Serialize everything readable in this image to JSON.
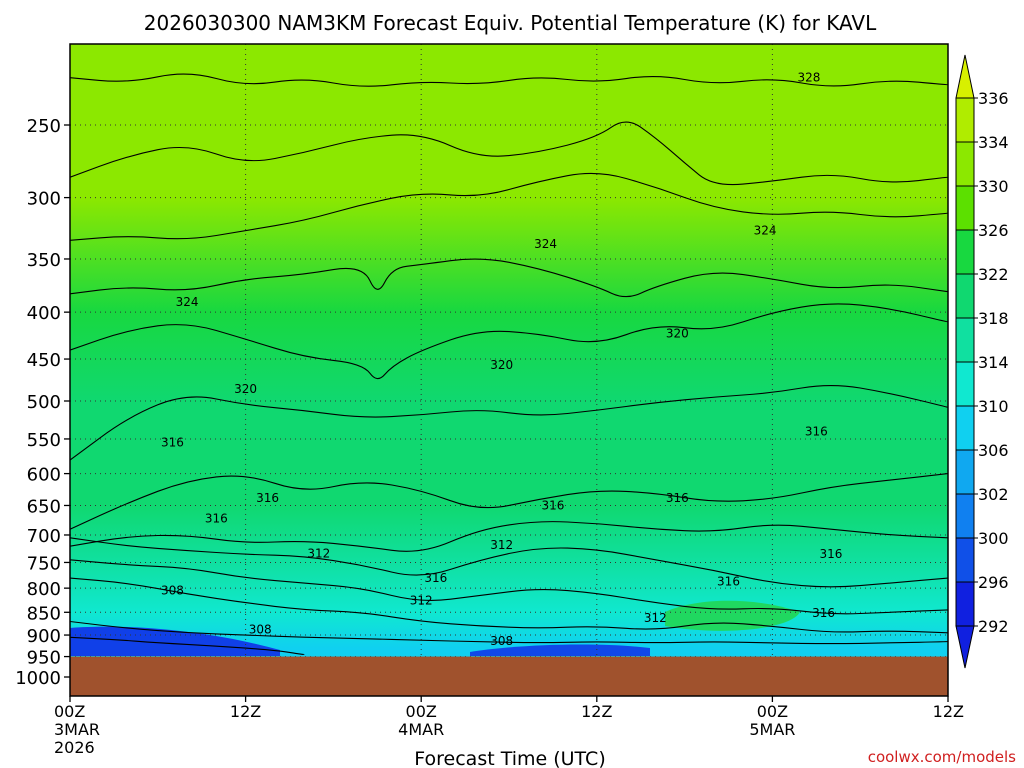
{
  "chart_data": {
    "type": "heatmap",
    "title": "2026030300 NAM3KM Forecast Equiv. Potential Temperature (K) for KAVL",
    "xlabel": "Forecast Time (UTC)",
    "ylabel": "",
    "x_ticks": [
      {
        "hour": 0,
        "label": "00Z",
        "sub": [
          "3MAR",
          "2026"
        ]
      },
      {
        "hour": 12,
        "label": "12Z",
        "sub": []
      },
      {
        "hour": 24,
        "label": "00Z",
        "sub": [
          "4MAR"
        ]
      },
      {
        "hour": 36,
        "label": "12Z",
        "sub": []
      },
      {
        "hour": 48,
        "label": "00Z",
        "sub": [
          "5MAR"
        ]
      },
      {
        "hour": 60,
        "label": "12Z",
        "sub": []
      }
    ],
    "xlim": [
      0,
      60
    ],
    "y_ticks": [
      250,
      300,
      350,
      400,
      450,
      500,
      550,
      600,
      650,
      700,
      750,
      800,
      850,
      900,
      950,
      1000
    ],
    "y_scale": "log",
    "ylim": [
      1050,
      200
    ],
    "ground_pressure": 950,
    "colorbar": {
      "labels": [
        "336",
        "334",
        "330",
        "326",
        "322",
        "318",
        "314",
        "310",
        "306",
        "302",
        "300",
        "296",
        "292"
      ],
      "colors": [
        "#d8f000",
        "#b0ec00",
        "#8ce800",
        "#5ce000",
        "#18d840",
        "#10d870",
        "#10e0a0",
        "#10e8d0",
        "#10d0f0",
        "#10a8f0",
        "#1080f0",
        "#1050e8",
        "#1020e0"
      ]
    },
    "field_levels": [
      {
        "pressure": 210,
        "value": 331
      },
      {
        "pressure": 300,
        "value": 328
      },
      {
        "pressure": 400,
        "value": 323
      },
      {
        "pressure": 500,
        "value": 319
      },
      {
        "pressure": 650,
        "value": 316
      },
      {
        "pressure": 750,
        "value": 313
      },
      {
        "pressure": 850,
        "value": 309
      },
      {
        "pressure": 930,
        "value": 305
      }
    ],
    "contours": [
      {
        "value": 328,
        "pts": [
          [
            0,
            222
          ],
          [
            4,
            225
          ],
          [
            8,
            218
          ],
          [
            12,
            227
          ],
          [
            16,
            222
          ],
          [
            20,
            228
          ],
          [
            24,
            224
          ],
          [
            28,
            226
          ],
          [
            32,
            221
          ],
          [
            36,
            225
          ],
          [
            40,
            220
          ],
          [
            44,
            226
          ],
          [
            48,
            222
          ],
          [
            52,
            228
          ],
          [
            56,
            223
          ],
          [
            60,
            226
          ]
        ]
      },
      {
        "value": 328,
        "pts": [
          [
            0,
            285
          ],
          [
            4,
            270
          ],
          [
            8,
            262
          ],
          [
            12,
            276
          ],
          [
            16,
            268
          ],
          [
            20,
            258
          ],
          [
            24,
            255
          ],
          [
            28,
            272
          ],
          [
            32,
            268
          ],
          [
            36,
            258
          ],
          [
            38,
            245
          ],
          [
            40,
            258
          ],
          [
            42,
            275
          ],
          [
            44,
            292
          ],
          [
            48,
            288
          ],
          [
            52,
            282
          ],
          [
            56,
            290
          ],
          [
            60,
            285
          ]
        ]
      },
      {
        "value": 324,
        "pts": [
          [
            0,
            334
          ],
          [
            4,
            330
          ],
          [
            8,
            334
          ],
          [
            12,
            326
          ],
          [
            16,
            318
          ],
          [
            20,
            305
          ],
          [
            24,
            296
          ],
          [
            28,
            300
          ],
          [
            32,
            288
          ],
          [
            36,
            280
          ],
          [
            40,
            292
          ],
          [
            44,
            308
          ],
          [
            48,
            314
          ],
          [
            52,
            310
          ],
          [
            56,
            316
          ],
          [
            60,
            312
          ]
        ]
      },
      {
        "value": 324,
        "pts": [
          [
            0,
            382
          ],
          [
            4,
            375
          ],
          [
            8,
            380
          ],
          [
            12,
            368
          ],
          [
            16,
            364
          ],
          [
            20,
            355
          ],
          [
            21,
            385
          ],
          [
            22,
            358
          ],
          [
            24,
            355
          ],
          [
            28,
            348
          ],
          [
            32,
            358
          ],
          [
            36,
            375
          ],
          [
            38,
            388
          ],
          [
            40,
            375
          ],
          [
            44,
            360
          ],
          [
            48,
            368
          ],
          [
            52,
            378
          ],
          [
            56,
            372
          ],
          [
            60,
            380
          ]
        ]
      },
      {
        "value": 320,
        "pts": [
          [
            0,
            440
          ],
          [
            4,
            418
          ],
          [
            8,
            410
          ],
          [
            12,
            428
          ],
          [
            16,
            448
          ],
          [
            20,
            455
          ],
          [
            21,
            478
          ],
          [
            22,
            458
          ],
          [
            24,
            440
          ],
          [
            28,
            418
          ],
          [
            32,
            422
          ],
          [
            36,
            435
          ],
          [
            40,
            412
          ],
          [
            44,
            420
          ],
          [
            48,
            400
          ],
          [
            52,
            390
          ],
          [
            56,
            396
          ],
          [
            60,
            410
          ]
        ]
      },
      {
        "value": 320,
        "pts": [
          [
            0,
            580
          ],
          [
            4,
            520
          ],
          [
            8,
            490
          ],
          [
            12,
            505
          ],
          [
            16,
            512
          ],
          [
            20,
            522
          ],
          [
            24,
            518
          ],
          [
            28,
            510
          ],
          [
            32,
            520
          ],
          [
            36,
            512
          ],
          [
            40,
            502
          ],
          [
            44,
            495
          ],
          [
            48,
            490
          ],
          [
            52,
            478
          ],
          [
            56,
            490
          ],
          [
            60,
            508
          ]
        ]
      },
      {
        "value": 316,
        "pts": [
          [
            0,
            690
          ],
          [
            4,
            645
          ],
          [
            8,
            610
          ],
          [
            12,
            600
          ],
          [
            16,
            630
          ],
          [
            20,
            610
          ],
          [
            24,
            625
          ],
          [
            28,
            660
          ],
          [
            32,
            640
          ],
          [
            36,
            625
          ],
          [
            40,
            630
          ],
          [
            44,
            645
          ],
          [
            48,
            640
          ],
          [
            52,
            620
          ],
          [
            56,
            610
          ],
          [
            60,
            600
          ]
        ]
      },
      {
        "value": 316,
        "pts": [
          [
            0,
            720
          ],
          [
            4,
            702
          ],
          [
            8,
            700
          ],
          [
            12,
            715
          ],
          [
            16,
            710
          ],
          [
            20,
            720
          ],
          [
            24,
            735
          ],
          [
            28,
            690
          ],
          [
            32,
            675
          ],
          [
            36,
            680
          ],
          [
            40,
            690
          ],
          [
            44,
            695
          ],
          [
            48,
            680
          ],
          [
            52,
            690
          ],
          [
            56,
            700
          ],
          [
            60,
            705
          ]
        ]
      },
      {
        "value": 312,
        "pts": [
          [
            0,
            705
          ],
          [
            4,
            720
          ],
          [
            8,
            728
          ],
          [
            12,
            735
          ],
          [
            16,
            738
          ],
          [
            20,
            755
          ],
          [
            24,
            782
          ],
          [
            28,
            745
          ],
          [
            32,
            722
          ],
          [
            36,
            725
          ],
          [
            40,
            745
          ],
          [
            44,
            765
          ],
          [
            48,
            790
          ],
          [
            52,
            800
          ],
          [
            56,
            790
          ],
          [
            60,
            780
          ]
        ]
      },
      {
        "value": 312,
        "pts": [
          [
            0,
            745
          ],
          [
            4,
            755
          ],
          [
            8,
            760
          ],
          [
            12,
            780
          ],
          [
            16,
            790
          ],
          [
            20,
            800
          ],
          [
            24,
            830
          ],
          [
            28,
            815
          ],
          [
            32,
            800
          ],
          [
            36,
            810
          ],
          [
            40,
            830
          ],
          [
            44,
            845
          ],
          [
            48,
            840
          ],
          [
            52,
            855
          ],
          [
            56,
            850
          ],
          [
            60,
            845
          ]
        ]
      },
      {
        "value": 308,
        "pts": [
          [
            0,
            780
          ],
          [
            4,
            790
          ],
          [
            8,
            812
          ],
          [
            12,
            830
          ],
          [
            16,
            845
          ],
          [
            20,
            850
          ],
          [
            24,
            870
          ],
          [
            28,
            880
          ],
          [
            32,
            885
          ],
          [
            36,
            880
          ],
          [
            40,
            890
          ],
          [
            44,
            870
          ],
          [
            48,
            880
          ],
          [
            52,
            895
          ],
          [
            56,
            890
          ],
          [
            60,
            895
          ]
        ]
      },
      {
        "value": 308,
        "pts": [
          [
            0,
            870
          ],
          [
            4,
            885
          ],
          [
            8,
            895
          ],
          [
            12,
            900
          ],
          [
            16,
            905
          ],
          [
            20,
            908
          ],
          [
            24,
            912
          ],
          [
            28,
            915
          ],
          [
            32,
            918
          ],
          [
            36,
            915
          ],
          [
            40,
            918
          ],
          [
            44,
            915
          ],
          [
            48,
            918
          ],
          [
            52,
            920
          ],
          [
            56,
            918
          ],
          [
            60,
            915
          ]
        ]
      },
      {
        "value": 304,
        "pts": [
          [
            0,
            905
          ],
          [
            3,
            910
          ],
          [
            6,
            918
          ],
          [
            10,
            925
          ],
          [
            14,
            935
          ],
          [
            16,
            945
          ]
        ]
      }
    ],
    "labels": [
      {
        "text": "328",
        "hour": 50.5,
        "pressure": 222
      },
      {
        "text": "324",
        "hour": 32.5,
        "pressure": 337
      },
      {
        "text": "324",
        "hour": 47.5,
        "pressure": 326
      },
      {
        "text": "324",
        "hour": 8,
        "pressure": 390
      },
      {
        "text": "320",
        "hour": 12,
        "pressure": 485
      },
      {
        "text": "320",
        "hour": 29.5,
        "pressure": 457
      },
      {
        "text": "320",
        "hour": 41.5,
        "pressure": 422
      },
      {
        "text": "316",
        "hour": 7,
        "pressure": 555
      },
      {
        "text": "316",
        "hour": 13.5,
        "pressure": 638
      },
      {
        "text": "316",
        "hour": 10,
        "pressure": 672
      },
      {
        "text": "316",
        "hour": 33,
        "pressure": 650
      },
      {
        "text": "316",
        "hour": 41.5,
        "pressure": 638
      },
      {
        "text": "316",
        "hour": 51,
        "pressure": 540
      },
      {
        "text": "316",
        "hour": 52,
        "pressure": 734
      },
      {
        "text": "316",
        "hour": 25,
        "pressure": 780
      },
      {
        "text": "316",
        "hour": 45,
        "pressure": 787
      },
      {
        "text": "316",
        "hour": 51.5,
        "pressure": 852
      },
      {
        "text": "312",
        "hour": 17,
        "pressure": 733
      },
      {
        "text": "312",
        "hour": 29.5,
        "pressure": 718
      },
      {
        "text": "312",
        "hour": 24,
        "pressure": 825
      },
      {
        "text": "312",
        "hour": 40,
        "pressure": 862
      },
      {
        "text": "308",
        "hour": 7,
        "pressure": 805
      },
      {
        "text": "308",
        "hour": 13,
        "pressure": 887
      },
      {
        "text": "308",
        "hour": 29.5,
        "pressure": 913
      }
    ],
    "grid": true,
    "watermark": "coolwx.com/models"
  }
}
